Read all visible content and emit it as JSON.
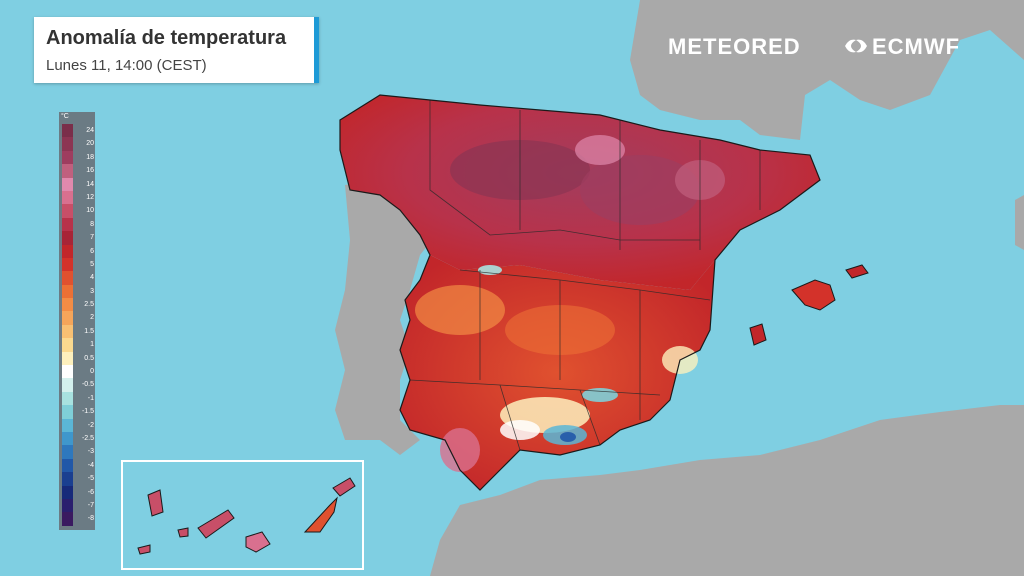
{
  "title": {
    "main": "Anomalía de temperatura",
    "subtitle": "Lunes 11, 14:00 (CEST)"
  },
  "brands": {
    "meteored": "METEORED",
    "ecmwf": "ECMWF"
  },
  "legend": {
    "unit": "°C",
    "items": [
      {
        "label": "24",
        "color": "#7a2e4a"
      },
      {
        "label": "20",
        "color": "#8c3553"
      },
      {
        "label": "18",
        "color": "#9e3d5f"
      },
      {
        "label": "16",
        "color": "#c0607e"
      },
      {
        "label": "14",
        "color": "#e089ad"
      },
      {
        "label": "12",
        "color": "#d9708f"
      },
      {
        "label": "10",
        "color": "#c84f68"
      },
      {
        "label": "8",
        "color": "#b8324a"
      },
      {
        "label": "7",
        "color": "#a82436"
      },
      {
        "label": "6",
        "color": "#c2262a"
      },
      {
        "label": "5",
        "color": "#d3322a"
      },
      {
        "label": "4",
        "color": "#e0512f"
      },
      {
        "label": "3",
        "color": "#ec7035"
      },
      {
        "label": "2.5",
        "color": "#f28c45"
      },
      {
        "label": "2",
        "color": "#f5a55a"
      },
      {
        "label": "1.5",
        "color": "#f8c073"
      },
      {
        "label": "1",
        "color": "#fad98f"
      },
      {
        "label": "0.5",
        "color": "#fdf0bd"
      },
      {
        "label": "0",
        "color": "#ffffff"
      },
      {
        "label": "-0.5",
        "color": "#d4f1ee"
      },
      {
        "label": "-1",
        "color": "#a8e2e0"
      },
      {
        "label": "-1.5",
        "color": "#7fcfd8"
      },
      {
        "label": "-2",
        "color": "#5bb6d6"
      },
      {
        "label": "-2.5",
        "color": "#3f97cc"
      },
      {
        "label": "-3",
        "color": "#2e78bd"
      },
      {
        "label": "-4",
        "color": "#2158a8"
      },
      {
        "label": "-5",
        "color": "#1a3f90"
      },
      {
        "label": "-6",
        "color": "#172a7a"
      },
      {
        "label": "-7",
        "color": "#2a1f6e"
      },
      {
        "label": "-8",
        "color": "#3a1a60"
      }
    ]
  },
  "colors": {
    "sea": "#7fcfe2",
    "land": "#a9a9a9",
    "accent": "#1e9ad6"
  }
}
